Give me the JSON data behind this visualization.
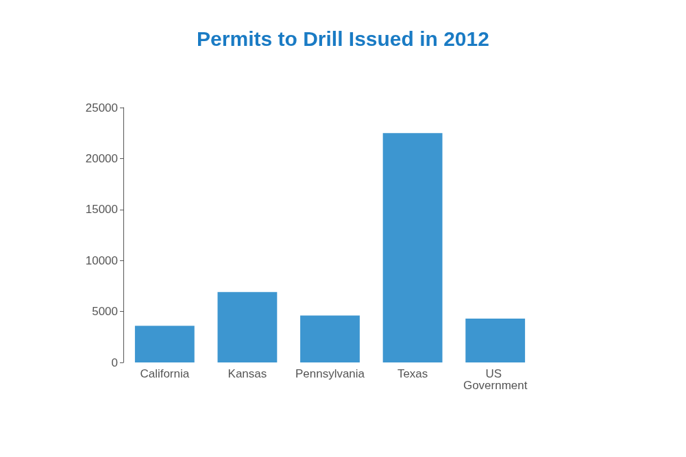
{
  "chart_data": {
    "type": "bar",
    "title": "Permits to Drill Issued in 2012",
    "categories": [
      "California",
      "Kansas",
      "Pennsylvania",
      "Texas",
      "US Government"
    ],
    "values": [
      3600,
      6900,
      4600,
      22500,
      4300
    ],
    "color": "#3d96d0",
    "ylim": [
      0,
      25000
    ],
    "yticks": [
      0,
      5000,
      10000,
      15000,
      20000,
      25000
    ],
    "grid": false
  }
}
